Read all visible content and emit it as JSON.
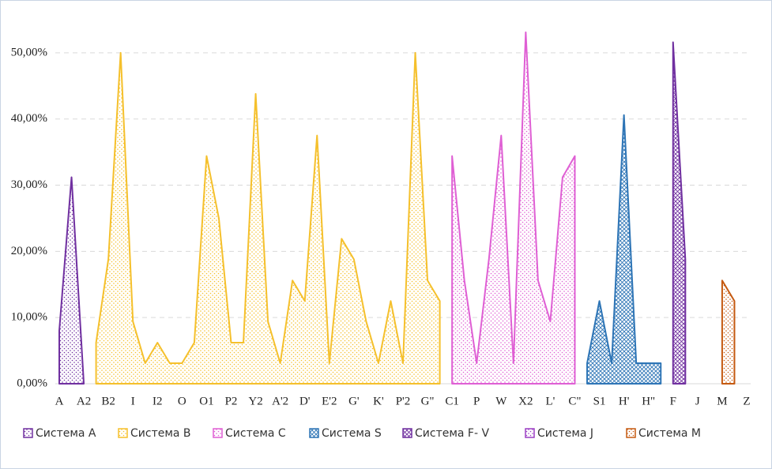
{
  "chart_data": {
    "type": "area",
    "categories": [
      "A",
      null,
      "A2",
      null,
      "B2",
      null,
      "I",
      null,
      "I2",
      null,
      "O",
      null,
      "O1",
      null,
      "P2",
      null,
      "Y2",
      null,
      "A'2",
      null,
      "D'",
      null,
      "E'2",
      null,
      "G'",
      null,
      "K'",
      null,
      "P'2",
      null,
      "G\"",
      null,
      "C1",
      null,
      "P",
      null,
      "W",
      null,
      "X2",
      null,
      "L'",
      null,
      "C\"",
      null,
      "S1",
      null,
      "H'",
      null,
      "H\"",
      null,
      "F",
      null,
      "J",
      null,
      "M",
      null,
      "Z"
    ],
    "series": [
      {
        "name": "Система A",
        "color": "#7030a0",
        "values": [
          8,
          31.2,
          0,
          null,
          null,
          null,
          null,
          null,
          null,
          null,
          null,
          null,
          null,
          null,
          null,
          null,
          null,
          null,
          null,
          null,
          null,
          null,
          null,
          null,
          null,
          null,
          null,
          null,
          null,
          null,
          null,
          null,
          null,
          null,
          null,
          null,
          null,
          null,
          null,
          null,
          null,
          null,
          null,
          null,
          null,
          null,
          null,
          null,
          null,
          null,
          null,
          null,
          null,
          null,
          null,
          null,
          null
        ]
      },
      {
        "name": "Система B",
        "color": "#f5c02c",
        "values": [
          null,
          null,
          null,
          6.2,
          18.8,
          50,
          9.4,
          3.1,
          6.2,
          3.1,
          3.1,
          6.2,
          34.4,
          25,
          6.2,
          6.2,
          43.8,
          9.4,
          3.1,
          15.6,
          12.5,
          37.5,
          3.1,
          21.9,
          18.8,
          9.4,
          3.1,
          12.5,
          3.1,
          50,
          15.6,
          12.5,
          null,
          null,
          null,
          null,
          null,
          null,
          null,
          null,
          null,
          null,
          null,
          null,
          null,
          null,
          null,
          null,
          null,
          null,
          null,
          null,
          null,
          null,
          null,
          null,
          null
        ]
      },
      {
        "name": "Система C",
        "color": "#df5fd4",
        "values": [
          null,
          null,
          null,
          null,
          null,
          null,
          null,
          null,
          null,
          null,
          null,
          null,
          null,
          null,
          null,
          null,
          null,
          null,
          null,
          null,
          null,
          null,
          null,
          null,
          null,
          null,
          null,
          null,
          null,
          null,
          null,
          null,
          34.4,
          15.6,
          3.1,
          18.8,
          37.5,
          3.1,
          53.1,
          15.6,
          9.4,
          31.2,
          34.4,
          null,
          null,
          null,
          null,
          null,
          null,
          null,
          null,
          null,
          null,
          null,
          null,
          null,
          null
        ]
      },
      {
        "name": "Система S",
        "color": "#2e75b6",
        "values": [
          null,
          null,
          null,
          null,
          null,
          null,
          null,
          null,
          null,
          null,
          null,
          null,
          null,
          null,
          null,
          null,
          null,
          null,
          null,
          null,
          null,
          null,
          null,
          null,
          null,
          null,
          null,
          null,
          null,
          null,
          null,
          null,
          null,
          null,
          null,
          null,
          null,
          null,
          null,
          null,
          null,
          null,
          null,
          3.1,
          12.5,
          3.1,
          40.6,
          3.1,
          3.1,
          3.1,
          null,
          null,
          null,
          null,
          null,
          null,
          null
        ]
      },
      {
        "name": "Система F- V",
        "color": "#7030a0",
        "values": [
          null,
          null,
          null,
          null,
          null,
          null,
          null,
          null,
          null,
          null,
          null,
          null,
          null,
          null,
          null,
          null,
          null,
          null,
          null,
          null,
          null,
          null,
          null,
          null,
          null,
          null,
          null,
          null,
          null,
          null,
          null,
          null,
          null,
          null,
          null,
          null,
          null,
          null,
          null,
          null,
          null,
          null,
          null,
          null,
          null,
          null,
          null,
          null,
          null,
          null,
          51.6,
          18.8,
          null,
          null,
          null,
          null,
          null
        ]
      },
      {
        "name": "Система J",
        "color": "#9b3fc4",
        "values": [
          null,
          null,
          null,
          null,
          null,
          null,
          null,
          null,
          null,
          null,
          null,
          null,
          null,
          null,
          null,
          null,
          null,
          null,
          null,
          null,
          null,
          null,
          null,
          null,
          null,
          null,
          null,
          null,
          null,
          null,
          null,
          null,
          null,
          null,
          null,
          null,
          null,
          null,
          null,
          null,
          null,
          null,
          null,
          null,
          null,
          null,
          null,
          null,
          null,
          null,
          null,
          null,
          null,
          null,
          null,
          null,
          null
        ]
      },
      {
        "name": "Система M",
        "color": "#c55a11",
        "values": [
          null,
          null,
          null,
          null,
          null,
          null,
          null,
          null,
          null,
          null,
          null,
          null,
          null,
          null,
          null,
          null,
          null,
          null,
          null,
          null,
          null,
          null,
          null,
          null,
          null,
          null,
          null,
          null,
          null,
          null,
          null,
          null,
          null,
          null,
          null,
          null,
          null,
          null,
          null,
          null,
          null,
          null,
          null,
          null,
          null,
          null,
          null,
          null,
          null,
          null,
          null,
          null,
          null,
          null,
          15.6,
          12.5,
          null
        ]
      }
    ],
    "ylim": [
      0,
      55
    ],
    "yticks": [
      {
        "value": 0,
        "label": "0,00%"
      },
      {
        "value": 10,
        "label": "10,00%"
      },
      {
        "value": 20,
        "label": "20,00%"
      },
      {
        "value": 30,
        "label": "30,00%"
      },
      {
        "value": 40,
        "label": "40,00%"
      },
      {
        "value": 50,
        "label": "50,00%"
      }
    ],
    "grid": true,
    "legend": "bottom"
  }
}
